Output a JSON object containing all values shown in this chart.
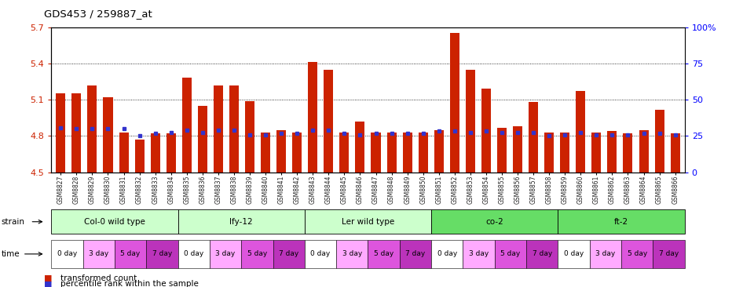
{
  "title": "GDS453 / 259887_at",
  "samples": [
    "GSM8827",
    "GSM8828",
    "GSM8829",
    "GSM8830",
    "GSM8831",
    "GSM8832",
    "GSM8833",
    "GSM8834",
    "GSM8835",
    "GSM8836",
    "GSM8837",
    "GSM8838",
    "GSM8839",
    "GSM8840",
    "GSM8841",
    "GSM8842",
    "GSM8843",
    "GSM8844",
    "GSM8845",
    "GSM8846",
    "GSM8847",
    "GSM8848",
    "GSM8849",
    "GSM8850",
    "GSM8851",
    "GSM8852",
    "GSM8853",
    "GSM8854",
    "GSM8855",
    "GSM8856",
    "GSM8857",
    "GSM8858",
    "GSM8859",
    "GSM8860",
    "GSM8861",
    "GSM8862",
    "GSM8863",
    "GSM8864",
    "GSM8865",
    "GSM8866"
  ],
  "bar_values": [
    5.15,
    5.15,
    5.22,
    5.12,
    4.83,
    4.77,
    4.82,
    4.82,
    5.28,
    5.05,
    5.22,
    5.22,
    5.09,
    4.83,
    4.85,
    4.83,
    5.41,
    5.35,
    4.83,
    4.92,
    4.83,
    4.83,
    4.83,
    4.83,
    4.85,
    5.65,
    5.35,
    5.19,
    4.87,
    4.88,
    5.08,
    4.83,
    4.83,
    5.17,
    4.83,
    4.84,
    4.82,
    4.85,
    5.02,
    4.82
  ],
  "percentile_values": [
    4.87,
    4.86,
    4.86,
    4.86,
    4.86,
    4.8,
    4.82,
    4.83,
    4.85,
    4.83,
    4.85,
    4.85,
    4.81,
    4.81,
    4.82,
    4.82,
    4.85,
    4.85,
    4.82,
    4.81,
    4.82,
    4.82,
    4.82,
    4.82,
    4.84,
    4.84,
    4.83,
    4.84,
    4.83,
    4.83,
    4.83,
    4.8,
    4.81,
    4.83,
    4.81,
    4.81,
    4.81,
    4.82,
    4.82,
    4.81
  ],
  "ymin": 4.5,
  "ymax": 5.7,
  "bar_color": "#cc2200",
  "percentile_color": "#3333cc",
  "bg_color": "#ffffff",
  "plot_bg": "#ffffff",
  "strains": [
    {
      "label": "Col-0 wild type",
      "start": 0,
      "end": 8,
      "color": "#ccffcc"
    },
    {
      "label": "lfy-12",
      "start": 8,
      "end": 16,
      "color": "#ccffcc"
    },
    {
      "label": "Ler wild type",
      "start": 16,
      "end": 24,
      "color": "#ccffcc"
    },
    {
      "label": "co-2",
      "start": 24,
      "end": 32,
      "color": "#66dd66"
    },
    {
      "label": "ft-2",
      "start": 32,
      "end": 40,
      "color": "#66dd66"
    }
  ],
  "time_pattern": [
    "0 day",
    "3 day",
    "5 day",
    "7 day"
  ],
  "time_colors": [
    "#ffffff",
    "#ffaaff",
    "#dd55dd",
    "#bb33bb"
  ],
  "legend_items": [
    {
      "label": "transformed count",
      "color": "#cc2200"
    },
    {
      "label": "percentile rank within the sample",
      "color": "#3333cc"
    }
  ]
}
